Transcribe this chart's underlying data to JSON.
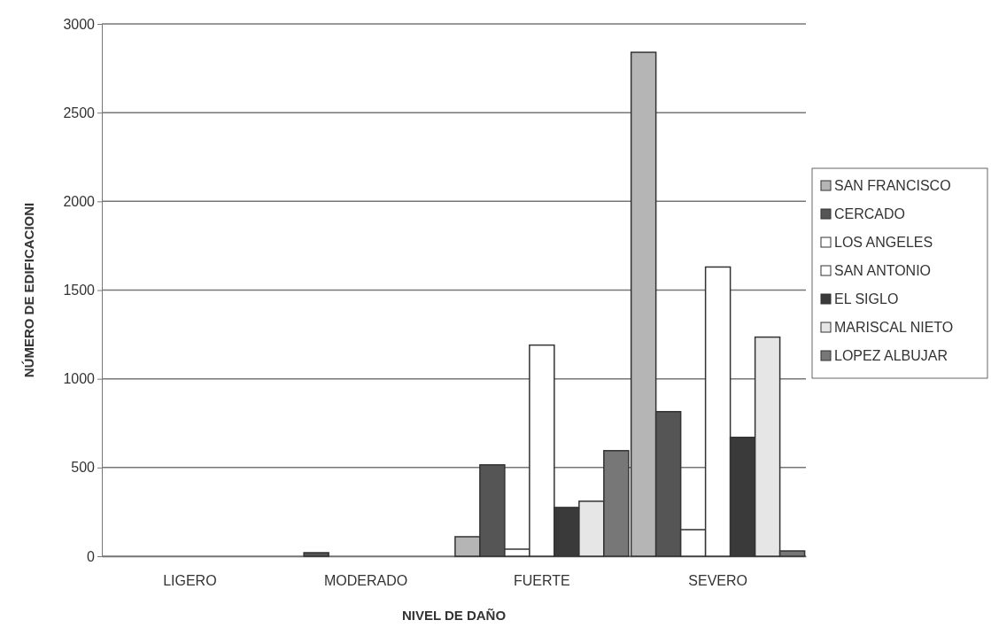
{
  "chart_data": {
    "type": "bar",
    "xlabel": "NIVEL DE DAÑO",
    "ylabel": "NÚMERO DE EDIFICACIONI",
    "categories": [
      "LIGERO",
      "MODERADO",
      "FUERTE",
      "SEVERO"
    ],
    "series": [
      {
        "name": "SAN FRANCISCO",
        "color": "#b5b5b5",
        "values": [
          0,
          0,
          110,
          2840
        ]
      },
      {
        "name": "CERCADO",
        "color": "#555555",
        "values": [
          0,
          20,
          515,
          815
        ]
      },
      {
        "name": "LOS ANGELES",
        "color": "#ffffff",
        "values": [
          0,
          0,
          40,
          150
        ]
      },
      {
        "name": "SAN ANTONIO",
        "color": "#ffffff",
        "values": [
          0,
          0,
          1190,
          1630
        ]
      },
      {
        "name": "EL SIGLO",
        "color": "#3a3a3a",
        "values": [
          0,
          0,
          275,
          670
        ]
      },
      {
        "name": "MARISCAL NIETO",
        "color": "#e6e6e6",
        "values": [
          0,
          0,
          310,
          1235
        ]
      },
      {
        "name": "LOPEZ ALBUJAR",
        "color": "#777777",
        "values": [
          0,
          0,
          595,
          30
        ]
      }
    ],
    "ylim": [
      0,
      3000
    ],
    "yticks": [
      0,
      500,
      1000,
      1500,
      2000,
      2500,
      3000
    ],
    "grid": "y",
    "legend": "right"
  }
}
